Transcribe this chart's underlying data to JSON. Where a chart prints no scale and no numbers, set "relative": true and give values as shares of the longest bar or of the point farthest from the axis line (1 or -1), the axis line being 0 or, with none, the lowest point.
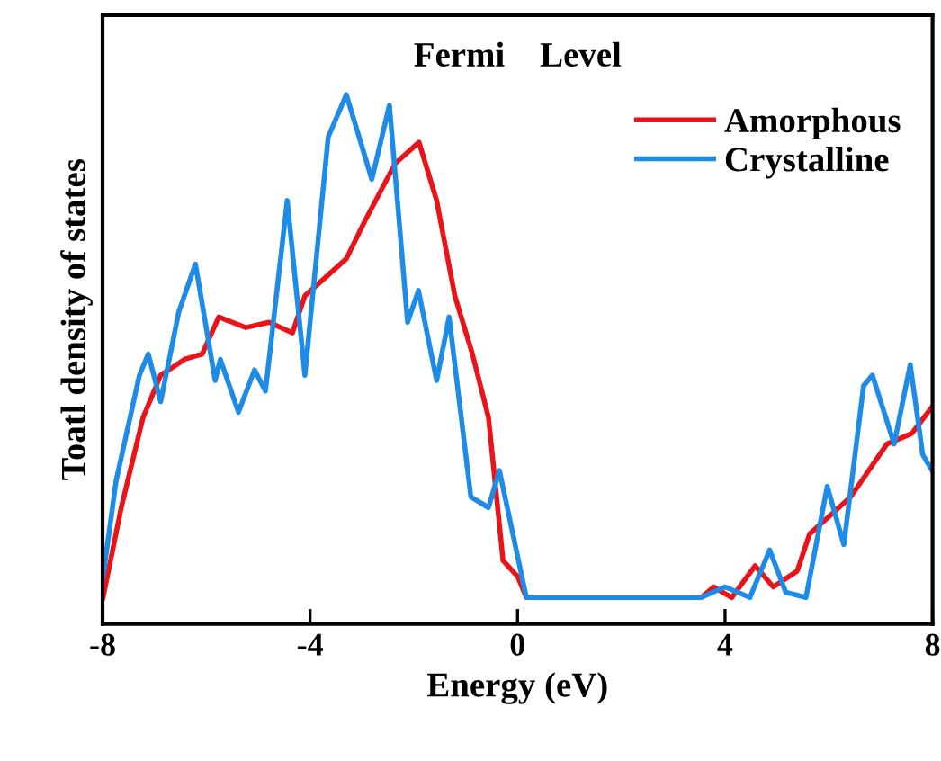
{
  "chart_data": {
    "type": "line",
    "relative": true,
    "xlabel": "Energy (eV)",
    "ylabel": "Toatl density of states",
    "annotations": [
      "Fermi    Level"
    ],
    "xlim": [
      -8,
      8
    ],
    "xticks": [
      -8,
      -4,
      0,
      4,
      8
    ],
    "legend": "top right",
    "grid": false,
    "marker": "none",
    "line_style": "solid",
    "series": [
      {
        "name": "Amorphous",
        "color": "#e8141a",
        "x": [
          -7.99,
          -7.64,
          -7.22,
          -6.88,
          -6.42,
          -6.08,
          -5.76,
          -5.24,
          -4.79,
          -4.34,
          -4.1,
          -3.3,
          -2.95,
          -2.36,
          -1.9,
          -1.56,
          -1.21,
          -0.87,
          -0.56,
          -0.28,
          0.0,
          0.17,
          3.54,
          3.78,
          4.13,
          4.58,
          4.93,
          5.39,
          5.63,
          6.42,
          7.12,
          7.6,
          7.99
        ],
        "values": [
          0.05,
          0.22,
          0.39,
          0.47,
          0.5,
          0.51,
          0.58,
          0.56,
          0.57,
          0.55,
          0.62,
          0.69,
          0.76,
          0.87,
          0.91,
          0.8,
          0.62,
          0.51,
          0.39,
          0.12,
          0.09,
          0.05,
          0.05,
          0.07,
          0.05,
          0.11,
          0.07,
          0.1,
          0.17,
          0.24,
          0.34,
          0.36,
          0.41
        ]
      },
      {
        "name": "Crystalline",
        "color": "#1e8ce6",
        "x": [
          -7.99,
          -7.74,
          -7.29,
          -7.12,
          -6.88,
          -6.53,
          -6.21,
          -5.83,
          -5.73,
          -5.38,
          -5.07,
          -4.86,
          -4.44,
          -4.1,
          -3.65,
          -3.3,
          -2.81,
          -2.47,
          -2.12,
          -1.91,
          -1.56,
          -1.32,
          -0.9,
          -0.56,
          -0.35,
          0.17,
          3.54,
          4.0,
          4.48,
          4.86,
          5.17,
          5.56,
          5.97,
          6.29,
          6.67,
          6.84,
          7.26,
          7.57,
          7.81,
          7.99
        ],
        "values": [
          0.09,
          0.27,
          0.47,
          0.51,
          0.42,
          0.59,
          0.68,
          0.46,
          0.5,
          0.4,
          0.48,
          0.44,
          0.8,
          0.47,
          0.92,
          1.0,
          0.84,
          0.98,
          0.57,
          0.63,
          0.46,
          0.58,
          0.24,
          0.22,
          0.29,
          0.05,
          0.05,
          0.07,
          0.05,
          0.14,
          0.06,
          0.05,
          0.26,
          0.15,
          0.45,
          0.47,
          0.34,
          0.49,
          0.32,
          0.29
        ]
      }
    ]
  }
}
